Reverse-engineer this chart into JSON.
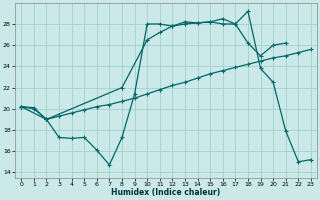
{
  "background_color": "#cce9e9",
  "grid_color": "#99cccc",
  "line_color": "#006666",
  "xlabel": "Humidex (Indice chaleur)",
  "xlim": [
    -0.5,
    23.5
  ],
  "ylim": [
    13.5,
    30.0
  ],
  "yticks": [
    14,
    16,
    18,
    20,
    22,
    24,
    26,
    28
  ],
  "xticks": [
    0,
    1,
    2,
    3,
    4,
    5,
    6,
    7,
    8,
    9,
    10,
    11,
    12,
    13,
    14,
    15,
    16,
    17,
    18,
    19,
    20,
    21,
    22,
    23
  ],
  "line_zigzag_x": [
    0,
    1,
    2,
    3,
    4,
    5,
    6,
    7,
    8,
    9,
    10,
    11,
    12,
    13,
    14,
    15,
    16,
    17,
    18,
    19,
    20,
    21,
    22,
    23
  ],
  "line_zigzag_y": [
    20.2,
    20.1,
    19.0,
    17.3,
    17.2,
    17.3,
    16.1,
    14.7,
    17.3,
    21.4,
    28.0,
    28.0,
    27.8,
    28.2,
    28.1,
    28.2,
    28.5,
    28.0,
    29.2,
    23.8,
    22.5,
    17.9,
    15.0,
    15.2
  ],
  "line_upper_x": [
    0,
    2,
    8,
    10,
    11,
    12,
    13,
    14,
    15,
    16,
    17,
    18,
    19,
    20,
    21
  ],
  "line_upper_y": [
    20.2,
    19.0,
    22.0,
    26.5,
    27.2,
    27.8,
    28.0,
    28.1,
    28.2,
    28.0,
    28.0,
    26.2,
    25.0,
    26.0,
    26.2
  ],
  "line_lower_x": [
    0,
    1,
    2,
    3,
    4,
    5,
    6,
    7,
    8,
    9,
    10,
    11,
    12,
    13,
    14,
    15,
    16,
    17,
    18,
    19,
    20,
    21,
    22,
    23
  ],
  "line_lower_y": [
    20.2,
    20.0,
    19.0,
    19.3,
    19.6,
    19.9,
    20.2,
    20.4,
    20.7,
    21.0,
    21.4,
    21.8,
    22.2,
    22.5,
    22.9,
    23.3,
    23.6,
    23.9,
    24.2,
    24.5,
    24.8,
    25.0,
    25.3,
    25.6
  ]
}
